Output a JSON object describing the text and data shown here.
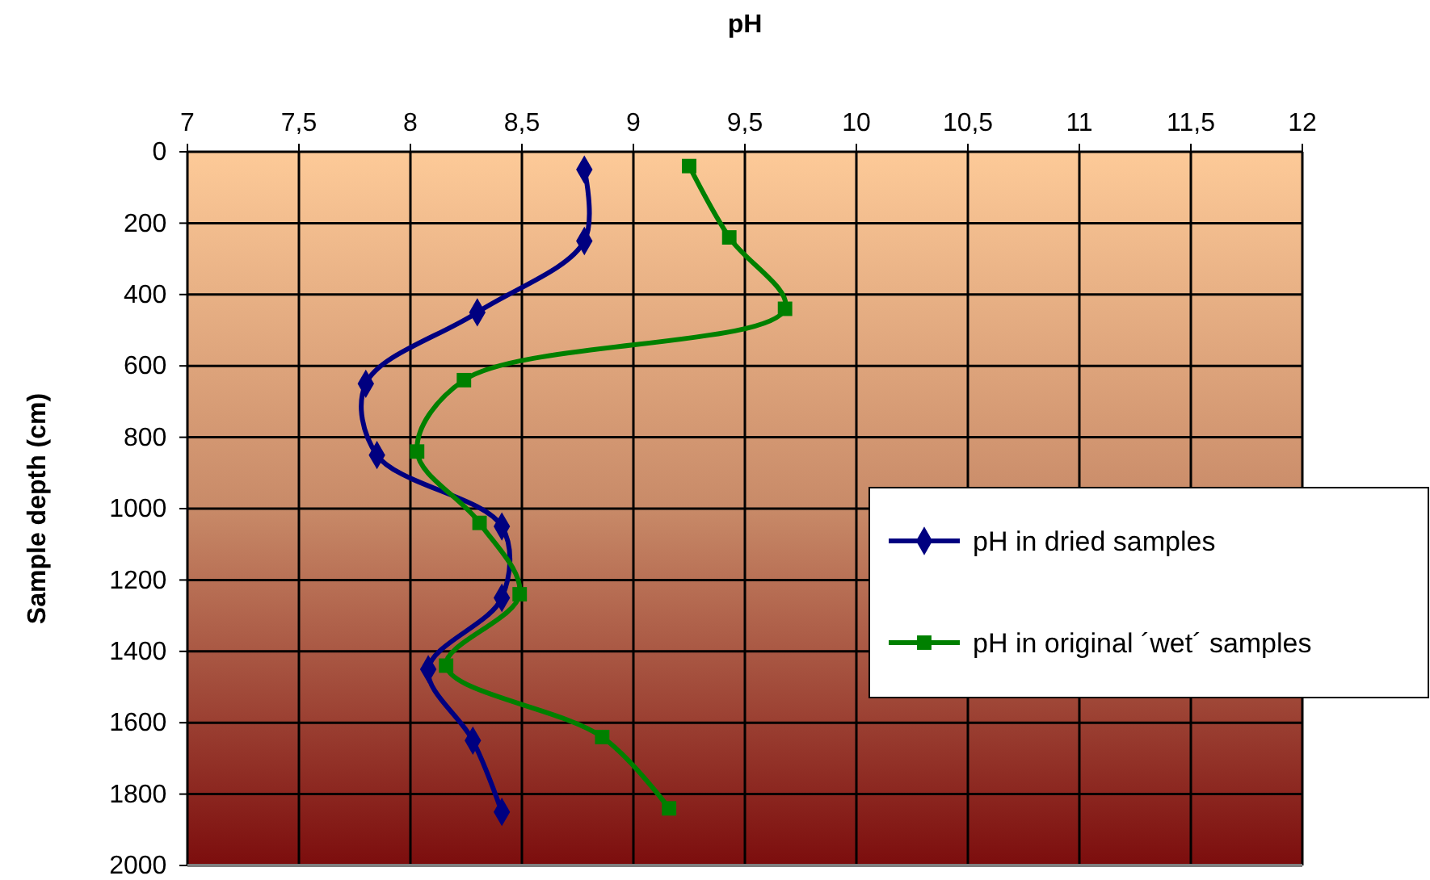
{
  "chart_data": {
    "type": "line",
    "xlabel": "pH",
    "ylabel": "Sample depth (cm)",
    "xlim": [
      7,
      12
    ],
    "xticks": [
      7,
      {
        "value": 7.5,
        "label": "7,5"
      },
      8,
      {
        "value": 8.5,
        "label": "8,5"
      },
      9,
      {
        "value": 9.5,
        "label": "9,5"
      },
      10,
      {
        "value": 10.5,
        "label": "10,5"
      },
      11,
      {
        "value": 11.5,
        "label": "11,5"
      },
      12
    ],
    "ylim": [
      2000,
      0
    ],
    "yticks": [
      0,
      200,
      400,
      600,
      800,
      1000,
      1200,
      1400,
      1600,
      1800,
      2000
    ],
    "grid": true,
    "legend": "right",
    "series": [
      {
        "name": "pH in dried samples",
        "color": "#000080",
        "marker": "diamond",
        "x": [
          8.78,
          8.78,
          8.3,
          7.8,
          7.85,
          8.41,
          8.41,
          8.08,
          8.28,
          8.41
        ],
        "values": [
          50,
          250,
          450,
          650,
          850,
          1050,
          1250,
          1450,
          1650,
          1850
        ]
      },
      {
        "name": "pH in original ´wet´ samples",
        "color": "#008000",
        "marker": "square",
        "x": [
          9.25,
          9.43,
          9.68,
          8.24,
          8.03,
          8.31,
          8.49,
          8.16,
          8.86,
          9.16
        ],
        "values": [
          40,
          240,
          440,
          640,
          840,
          1040,
          1240,
          1440,
          1640,
          1840
        ]
      }
    ]
  }
}
